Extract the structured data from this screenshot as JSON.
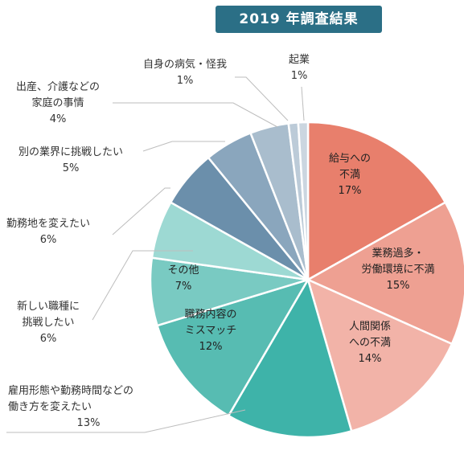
{
  "title": "2019 年調査結果",
  "chart_data": {
    "type": "pie",
    "title": "2019 年調査結果",
    "slices": [
      {
        "label": [
          "給与への",
          "不満"
        ],
        "value": 17,
        "pct": "17%",
        "color": "#e87f6c"
      },
      {
        "label": [
          "業務過多・",
          "労働環境に不満"
        ],
        "value": 15,
        "pct": "15%",
        "color": "#eea092"
      },
      {
        "label": [
          "人間関係",
          "への不満"
        ],
        "value": 14,
        "pct": "14%",
        "color": "#f2b3a8"
      },
      {
        "label": [
          "雇用形態や勤務時間などの",
          "働き方を変えたい"
        ],
        "value": 13,
        "pct": "13%",
        "color": "#3eb3a9"
      },
      {
        "label": [
          "職務内容の",
          "ミスマッチ"
        ],
        "value": 12,
        "pct": "12%",
        "color": "#57bcb2"
      },
      {
        "label": [
          "その他"
        ],
        "value": 7,
        "pct": "7%",
        "color": "#79cac2"
      },
      {
        "label": [
          "新しい職種に",
          "挑戦したい"
        ],
        "value": 6,
        "pct": "6%",
        "color": "#9dd9d3"
      },
      {
        "label": [
          "勤務地を変えたい"
        ],
        "value": 6,
        "pct": "6%",
        "color": "#6b8fab"
      },
      {
        "label": [
          "別の業界に挑戦したい"
        ],
        "value": 5,
        "pct": "5%",
        "color": "#8aa6bd"
      },
      {
        "label": [
          "出産、介護などの",
          "家庭の事情"
        ],
        "value": 4,
        "pct": "4%",
        "color": "#a9bdcd"
      },
      {
        "label": [
          "自身の病気・怪我"
        ],
        "value": 1,
        "pct": "1%",
        "color": "#bccbd8"
      },
      {
        "label": [
          "起業"
        ],
        "value": 1,
        "pct": "1%",
        "color": "#cbd6e0"
      }
    ]
  }
}
